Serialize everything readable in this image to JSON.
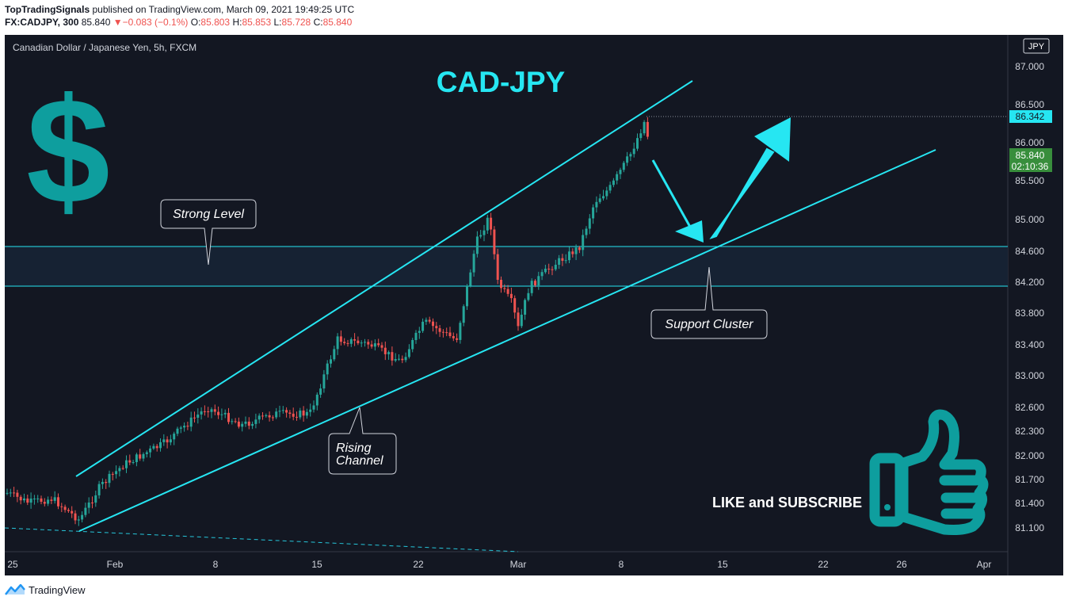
{
  "header": {
    "publisher": "TopTradingSignals",
    "published_text": "published on TradingView.com, March 09, 2021 19:49:25 UTC",
    "symbol": "FX:CADJPY, 300",
    "last": "85.840",
    "change_arrow": "▼",
    "change": "−0.083 (−0.1%)",
    "o_label": "O:",
    "o_value": "85.803",
    "h_label": "H:",
    "h_value": "85.853",
    "l_label": "L:",
    "l_value": "85.728",
    "c_label": "C:",
    "c_value": "85.840"
  },
  "chart_data": {
    "type": "candlestick",
    "pane_title": "Canadian Dollar / Japanese Yen, 5h, FXCM",
    "title": "CAD-JPY",
    "currency": "JPY",
    "y_ticks": [
      "87.000",
      "86.500",
      "86.000",
      "85.500",
      "85.000",
      "84.600",
      "84.200",
      "83.800",
      "83.400",
      "83.000",
      "82.600",
      "82.300",
      "82.000",
      "81.700",
      "81.400",
      "81.100"
    ],
    "x_ticks": [
      "25",
      "Feb",
      "8",
      "15",
      "22",
      "Mar",
      "8",
      "15",
      "22",
      "26",
      "Apr"
    ],
    "high_line_label": "86.342",
    "price_label": "85.840",
    "countdown_label": "02:10:36",
    "zone": {
      "top": 84.65,
      "bottom": 84.15
    },
    "annotations": {
      "strong_level": "Strong Level",
      "support_cluster": "Support Cluster",
      "rising_channel_1": "Rising",
      "rising_channel_2": "Channel",
      "cta": "LIKE and SUBSCRIBE"
    },
    "colors": {
      "up": "#26a69a",
      "down": "#ef5350",
      "channel": "#26e6f2",
      "background": "#131722",
      "brand_teal": "#0e9e9e"
    }
  },
  "footer": {
    "brand": "TradingView"
  }
}
